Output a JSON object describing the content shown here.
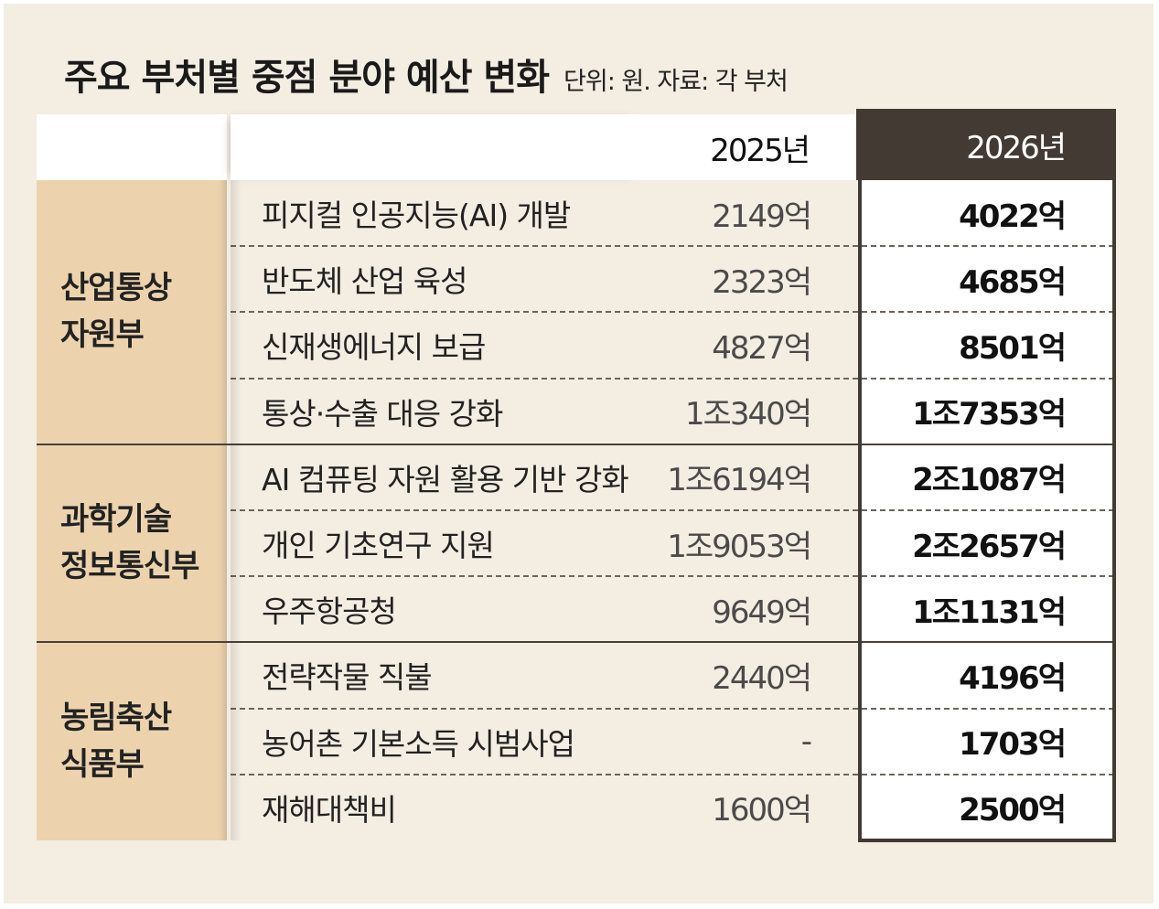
{
  "title": "주요 부처별 중점 분야 예산 변화",
  "note": "단위: 원. 자료: 각 부처",
  "chart_data": {
    "type": "table",
    "columns": [
      "2025년",
      "2026년"
    ],
    "groups": [
      {
        "ministry": "산업통상\n자원부",
        "rows": [
          {
            "item": "피지컬 인공지능(AI) 개발",
            "y2025": "2149억",
            "y2026": "4022억"
          },
          {
            "item": "반도체 산업 육성",
            "y2025": "2323억",
            "y2026": "4685억"
          },
          {
            "item": "신재생에너지 보급",
            "y2025": "4827억",
            "y2026": "8501억"
          },
          {
            "item": "통상·수출 대응 강화",
            "y2025": "1조340억",
            "y2026": "1조7353억"
          }
        ]
      },
      {
        "ministry": "과학기술\n정보통신부",
        "rows": [
          {
            "item": "AI 컴퓨팅 자원 활용 기반 강화",
            "y2025": "1조6194억",
            "y2026": "2조1087억"
          },
          {
            "item": "개인 기초연구 지원",
            "y2025": "1조9053억",
            "y2026": "2조2657억"
          },
          {
            "item": "우주항공청",
            "y2025": "9649억",
            "y2026": "1조1131억"
          }
        ]
      },
      {
        "ministry": "농림축산\n식품부",
        "rows": [
          {
            "item": "전략작물 직불",
            "y2025": "2440억",
            "y2026": "4196억"
          },
          {
            "item": "농어촌 기본소득 시범사업",
            "y2025": "-",
            "y2026": "1703억"
          },
          {
            "item": "재해대책비",
            "y2025": "1600억",
            "y2026": "2500억"
          }
        ]
      }
    ]
  },
  "colors": {
    "background": "#f4ede2",
    "ministry_fill": "#ecd3ae",
    "highlight_header": "#433b33",
    "highlight_column": "#ffffff"
  }
}
